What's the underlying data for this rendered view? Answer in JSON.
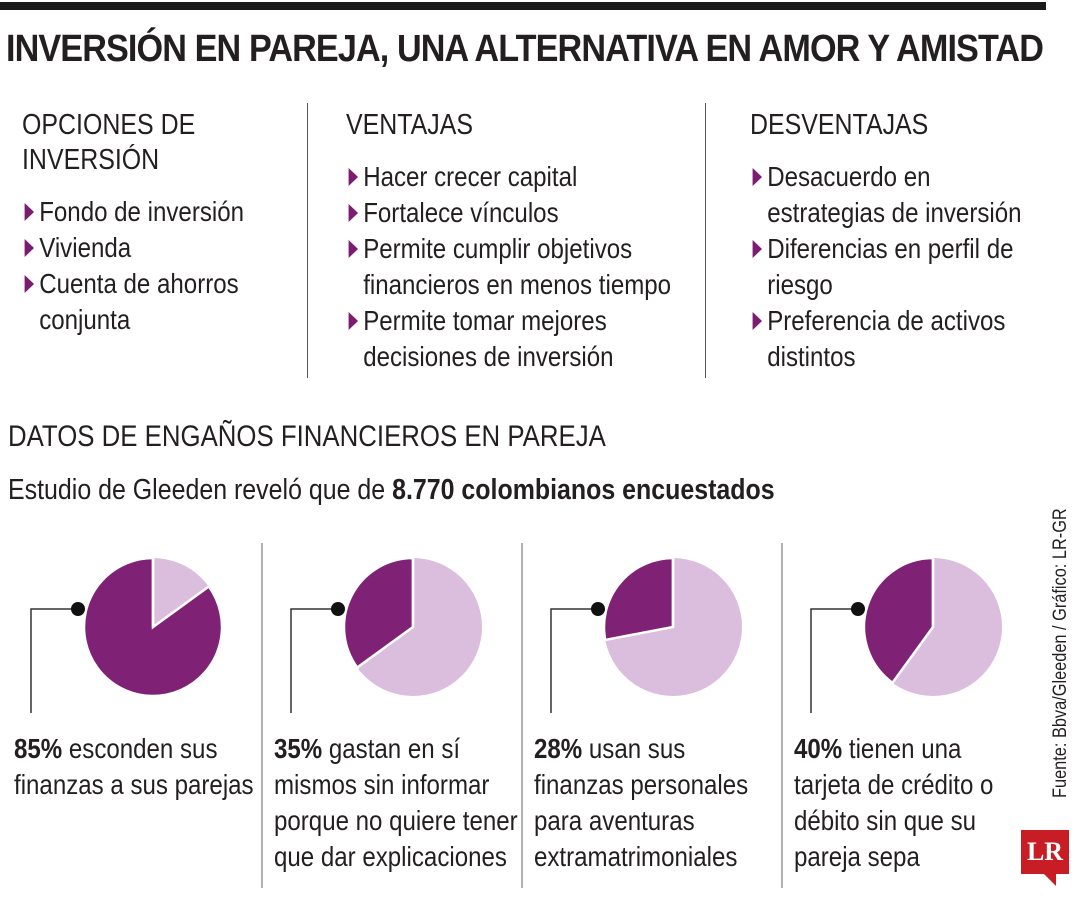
{
  "title": "INVERSIÓN EN PAREJA, UNA ALTERNATIVA EN AMOR Y AMISTAD",
  "columns": [
    {
      "heading_lines": [
        "OPCIONES DE",
        "INVERSIÓN"
      ],
      "items": [
        [
          "Fondo de inversión"
        ],
        [
          "Vivienda"
        ],
        [
          "Cuenta de ahorros",
          "conjunta"
        ]
      ]
    },
    {
      "heading_lines": [
        "VENTAJAS"
      ],
      "items": [
        [
          "Hacer crecer capital"
        ],
        [
          "Fortalece vínculos"
        ],
        [
          "Permite cumplir objetivos",
          "financieros en menos tiempo"
        ],
        [
          "Permite tomar mejores",
          "decisiones de inversión"
        ]
      ]
    },
    {
      "heading_lines": [
        "DESVENTAJAS"
      ],
      "items": [
        [
          "Desacuerdo en",
          "estrategias de inversión"
        ],
        [
          "Diferencias en perfil de",
          "riesgo"
        ],
        [
          "Preferencia de activos",
          "distintos"
        ]
      ]
    }
  ],
  "subtitle": "DATOS DE ENGAÑOS FINANCIEROS EN PAREJA",
  "intro": {
    "text": "Estudio de Gleeden reveló que de ",
    "bold": "8.770 colombianos encuestados"
  },
  "source": "Fuente: Bbva/Gleeden / Gráfico: LR-GR",
  "logo": "LR",
  "colors": {
    "dark_purple": "#7f2275",
    "light_purple": "#dbbedd",
    "arrow": "#7b1c72",
    "logo_red": "#c81d25"
  },
  "chart_data": {
    "type": "pie",
    "units": "%",
    "items": [
      {
        "value": 85,
        "label": "85%",
        "lines": [
          "esconden sus",
          "finanzas a sus parejas"
        ]
      },
      {
        "value": 35,
        "label": "35%",
        "lines": [
          "gastan en sí",
          "mismos sin informar",
          "porque no quiere tener",
          "que dar explicaciones"
        ]
      },
      {
        "value": 28,
        "label": "28%",
        "lines": [
          "usan sus",
          "finanzas personales",
          "para aventuras",
          "extramatrimoniales"
        ]
      },
      {
        "value": 40,
        "label": "40%",
        "lines": [
          "tienen una",
          "tarjeta de crédito o",
          "débito sin que su",
          "pareja sepa"
        ]
      }
    ]
  }
}
